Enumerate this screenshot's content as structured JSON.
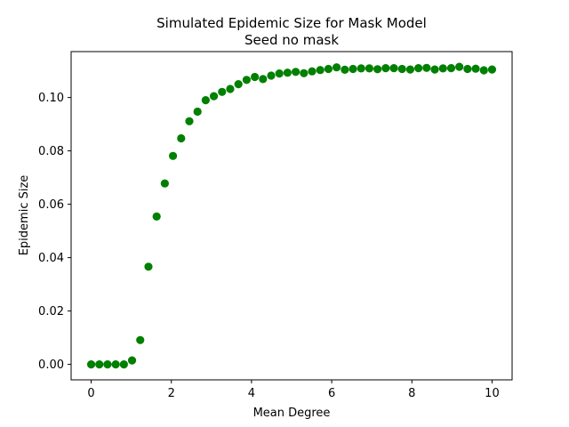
{
  "chart_data": {
    "type": "scatter",
    "title": "Simulated Epidemic Size for Mask Model",
    "subtitle": "Seed no mask",
    "xlabel": "Mean Degree",
    "ylabel": "Epidemic Size",
    "xlim": [
      -0.5,
      10.5
    ],
    "ylim": [
      -0.0058,
      0.1172
    ],
    "xticks": [
      0,
      2,
      4,
      6,
      8,
      10
    ],
    "xtick_labels": [
      "0",
      "2",
      "4",
      "6",
      "8",
      "10"
    ],
    "yticks": [
      0.0,
      0.02,
      0.04,
      0.06,
      0.08,
      0.1
    ],
    "ytick_labels": [
      "0.00",
      "0.02",
      "0.04",
      "0.06",
      "0.08",
      "0.10"
    ],
    "grid": false,
    "legend": null,
    "marker_color": "#008000",
    "series": [
      {
        "x": [
          0.0,
          0.204,
          0.408,
          0.612,
          0.816,
          1.02,
          1.224,
          1.429,
          1.633,
          1.837,
          2.041,
          2.245,
          2.449,
          2.653,
          2.857,
          3.061,
          3.265,
          3.469,
          3.673,
          3.878,
          4.082,
          4.286,
          4.49,
          4.694,
          4.898,
          5.102,
          5.306,
          5.51,
          5.714,
          5.918,
          6.122,
          6.327,
          6.531,
          6.735,
          6.939,
          7.143,
          7.347,
          7.551,
          7.755,
          7.959,
          8.163,
          8.367,
          8.571,
          8.776,
          8.98,
          9.184,
          9.388,
          9.592,
          9.796,
          10.0
        ],
        "y": [
          0.0,
          0.0,
          0.0,
          0.0,
          0.0,
          0.0015,
          0.0091,
          0.0366,
          0.0554,
          0.0678,
          0.0781,
          0.0847,
          0.0911,
          0.0947,
          0.099,
          0.1005,
          0.1021,
          0.1032,
          0.105,
          0.1066,
          0.1077,
          0.1069,
          0.1082,
          0.109,
          0.1093,
          0.1096,
          0.1091,
          0.1098,
          0.1103,
          0.1107,
          0.1113,
          0.1104,
          0.1107,
          0.1109,
          0.1109,
          0.1106,
          0.111,
          0.111,
          0.1107,
          0.1105,
          0.111,
          0.1111,
          0.1105,
          0.1109,
          0.111,
          0.1115,
          0.1107,
          0.1108,
          0.1102,
          0.1105
        ]
      }
    ]
  }
}
